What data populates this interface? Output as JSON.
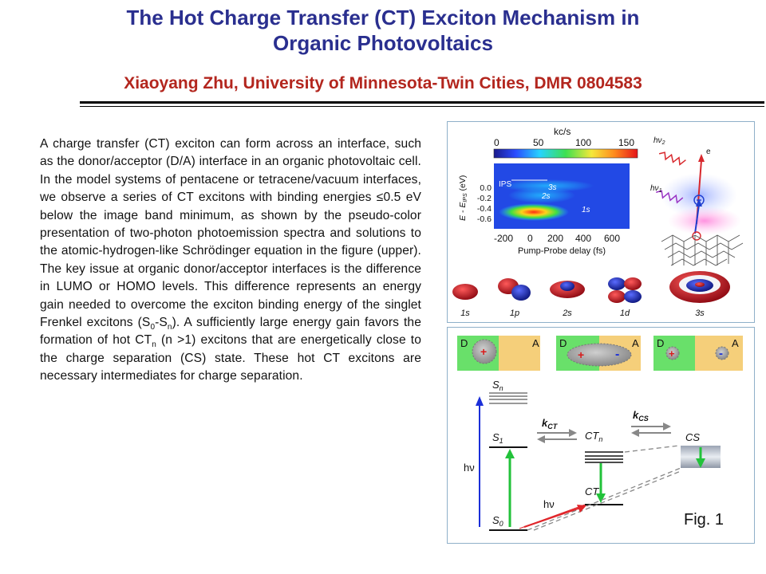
{
  "title_line1": "The Hot Charge Transfer (CT) Exciton Mechanism in",
  "title_line2": "Organic Photovoltaics",
  "subtitle": "Xiaoyang Zhu, University of Minnesota-Twin Cities, DMR 0804583",
  "body": {
    "p1": "A charge transfer (CT) exciton can form across an interface, such as the donor/acceptor (D/A) interface in an organic photovoltaic cell. In the model systems of pentacene or tetracene/vacuum interfaces, we observe a series of CT excitons with binding energies ≤0.5 eV below the image band minimum, as shown by the pseudo-color presentation of two-photon photoemission spectra and solutions to the atomic-hydrogen-like Schrödinger equation in the figure (upper). The key issue at organic donor/acceptor interfaces is the difference in LUMO or HOMO levels. This difference represents an energy gain needed to overcome the exciton binding energy of the singlet Frenkel excitons (S",
    "s0": "0",
    "dash": "-S",
    "sn": "n",
    "p2": "). A sufficiently large energy gain favors the formation of hot CT",
    "ctn": "n",
    "p3": " (n >1) excitons that are energetically close to the charge separation (CS) state. These hot CT excitons are necessary intermediates for charge separation."
  },
  "fig_label": "Fig. 1",
  "upper_figure": {
    "colorbar_unit": "kc/s",
    "colorbar_ticks": [
      "0",
      "50",
      "100",
      "150"
    ],
    "y_label": "E - E",
    "y_label_sub": "IPS",
    "y_label_unit": " (eV)",
    "y_ticks": [
      "0.0",
      "-0.2",
      "-0.4",
      "-0.6"
    ],
    "x_ticks": [
      "-200",
      "0",
      "200",
      "400",
      "600"
    ],
    "x_label": "Pump-Probe delay (fs)",
    "peak_labels": [
      "IPS",
      "3s",
      "2s",
      "1s"
    ],
    "orbital_labels": [
      "1s",
      "1p",
      "2s",
      "1d",
      "3s"
    ],
    "photon_labels": [
      "hν",
      "2",
      "hν",
      "1",
      "e"
    ]
  },
  "lower_figure": {
    "boxes": [
      {
        "donor": "D",
        "acceptor": "A",
        "plus": "+",
        "minus": ""
      },
      {
        "donor": "D",
        "acceptor": "A",
        "plus": "+",
        "minus": "-"
      },
      {
        "donor": "D",
        "acceptor": "A",
        "plus": "+",
        "minus": "-"
      }
    ],
    "levels": {
      "sn": "S",
      "sn_sub": "n",
      "s1": "S",
      "s1_sub": "1",
      "s0": "S",
      "s0_sub": "0",
      "ctn": "CT",
      "ctn_sub": "n",
      "ct1": "CT",
      "ct1_sub": "1",
      "cs": "CS"
    },
    "rates": {
      "kct": "k",
      "kct_sub": "CT",
      "kcs": "k",
      "kcs_sub": "CS"
    },
    "hv_left": "hν",
    "hv_diag": "hν"
  }
}
